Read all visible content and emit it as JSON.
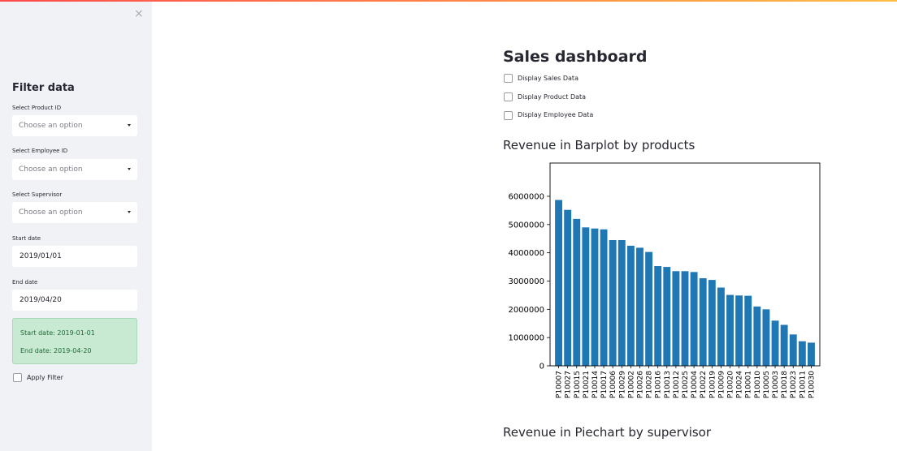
{
  "sidebar": {
    "title": "Filter data",
    "close_icon": "×",
    "product": {
      "label": "Select Product ID",
      "placeholder": "Choose an option"
    },
    "employee": {
      "label": "Select Employee ID",
      "placeholder": "Choose an option"
    },
    "supervisor": {
      "label": "Select Supervisor",
      "placeholder": "Choose an option"
    },
    "start": {
      "label": "Start date",
      "value": "2019/01/01"
    },
    "end": {
      "label": "End date",
      "value": "2019/04/20"
    },
    "info": {
      "start_line": "Start date:  2019-01-01",
      "end_line": "End date:  2019-04-20"
    },
    "apply_label": "Apply Filter"
  },
  "main": {
    "title": "Sales dashboard",
    "checkboxes": [
      "Display Sales Data",
      "Display Product Data",
      "Display Employee Data"
    ],
    "barplot_heading": "Revenue in Barplot by products",
    "piechart_heading": "Revenue in Piechart by supervisor"
  },
  "colors": {
    "bar": "#1f77b4",
    "info_bg": "#c9ead2",
    "sidebar_bg": "#f0f2f6"
  },
  "chart_data": {
    "type": "bar",
    "categories": [
      "P10007",
      "P10027",
      "P10015",
      "P10021",
      "P10014",
      "P10017",
      "P10006",
      "P10029",
      "P10002",
      "P10026",
      "P10028",
      "P10016",
      "P10013",
      "P10012",
      "P10025",
      "P10004",
      "P10022",
      "P10019",
      "P10009",
      "P10020",
      "P10024",
      "P10001",
      "P10010",
      "P10005",
      "P10003",
      "P10018",
      "P10023",
      "P10011",
      "P10030"
    ],
    "values": [
      5870000,
      5520000,
      5200000,
      4900000,
      4860000,
      4830000,
      4450000,
      4450000,
      4250000,
      4180000,
      4030000,
      3530000,
      3500000,
      3350000,
      3350000,
      3320000,
      3100000,
      3040000,
      2770000,
      2510000,
      2490000,
      2480000,
      2100000,
      2000000,
      1600000,
      1450000,
      1110000,
      870000,
      820000
    ],
    "yticks": [
      "0",
      "1000000",
      "2000000",
      "3000000",
      "4000000",
      "5000000",
      "6000000"
    ],
    "ylim": [
      0,
      6200000
    ]
  }
}
